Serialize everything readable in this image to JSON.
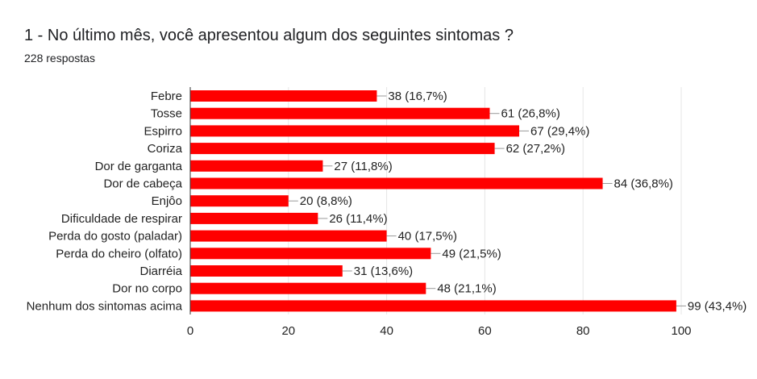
{
  "chart_data": {
    "type": "bar",
    "orientation": "horizontal",
    "title": "1 - No último mês, você apresentou algum dos seguintes sintomas ?",
    "subtitle": "228 respostas",
    "categories": [
      "Febre",
      "Tosse",
      "Espirro",
      "Coriza",
      "Dor de garganta",
      "Dor de cabeça",
      "Enjôo",
      "Dificuldade de respirar",
      "Perda do gosto (paladar)",
      "Perda do cheiro (olfato)",
      "Diarréia",
      "Dor no corpo",
      "Nenhum dos sintomas acima"
    ],
    "values": [
      38,
      61,
      67,
      62,
      27,
      84,
      20,
      26,
      40,
      49,
      31,
      48,
      99
    ],
    "data_labels": [
      "38 (16,7%)",
      "61 (26,8%)",
      "67 (29,4%)",
      "62 (27,2%)",
      "27 (11,8%)",
      "84 (36,8%)",
      "20 (8,8%)",
      "26 (11,4%)",
      "40 (17,5%)",
      "49 (21,5%)",
      "31 (13,6%)",
      "48 (21,1%)",
      "99 (43,4%)"
    ],
    "xlim": [
      0,
      100
    ],
    "xticks": [
      "0",
      "20",
      "40",
      "60",
      "80",
      "100"
    ],
    "grid": true,
    "bar_color": "#ff0000"
  }
}
